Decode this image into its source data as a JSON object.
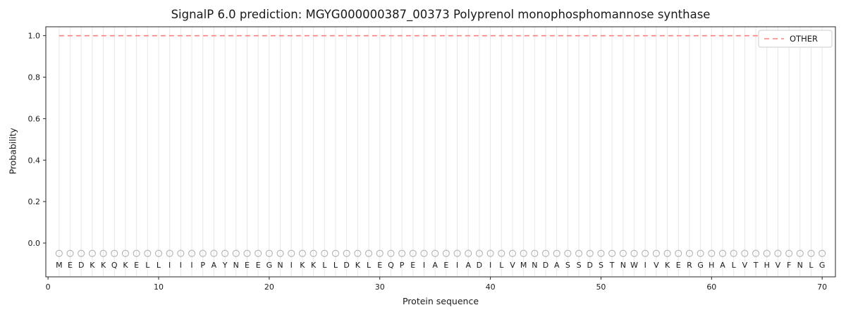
{
  "chart_data": {
    "type": "line",
    "title": "SignalP 6.0 prediction: MGYG000000387_00373 Polyprenol monophosphomannose synthase",
    "xlabel": "Protein sequence",
    "ylabel": "Probability",
    "x_ticks": [
      0,
      10,
      20,
      30,
      40,
      50,
      60,
      70
    ],
    "y_ticks": [
      0.0,
      0.2,
      0.4,
      0.6,
      0.8,
      1.0
    ],
    "xlim": [
      -0.2,
      71.2
    ],
    "ylim": [
      -0.163,
      1.043
    ],
    "grid": "vertical-per-residue",
    "legend_position": "upper right",
    "sequence": "MEDKKQKELLIIIPAYNEEGNIKKLLDKLEQPEIAEIADILVMNDASSDSTNWIVKERGHALVTHVFNLG",
    "x": [
      1,
      2,
      3,
      4,
      5,
      6,
      7,
      8,
      9,
      10,
      11,
      12,
      13,
      14,
      15,
      16,
      17,
      18,
      19,
      20,
      21,
      22,
      23,
      24,
      25,
      26,
      27,
      28,
      29,
      30,
      31,
      32,
      33,
      34,
      35,
      36,
      37,
      38,
      39,
      40,
      41,
      42,
      43,
      44,
      45,
      46,
      47,
      48,
      49,
      50,
      51,
      52,
      53,
      54,
      55,
      56,
      57,
      58,
      59,
      60,
      61,
      62,
      63,
      64,
      65,
      66,
      67,
      68,
      69,
      70
    ],
    "series": [
      {
        "name": "OTHER",
        "color": "#f4837f",
        "style": "dashed",
        "values": [
          1.0,
          1.0,
          1.0,
          1.0,
          1.0,
          1.0,
          1.0,
          1.0,
          1.0,
          1.0,
          1.0,
          1.0,
          1.0,
          1.0,
          1.0,
          1.0,
          1.0,
          1.0,
          1.0,
          1.0,
          1.0,
          1.0,
          1.0,
          1.0,
          1.0,
          1.0,
          1.0,
          1.0,
          1.0,
          1.0,
          1.0,
          1.0,
          1.0,
          1.0,
          1.0,
          1.0,
          1.0,
          1.0,
          1.0,
          1.0,
          1.0,
          1.0,
          1.0,
          1.0,
          1.0,
          1.0,
          1.0,
          1.0,
          1.0,
          1.0,
          1.0,
          1.0,
          1.0,
          1.0,
          1.0,
          1.0,
          1.0,
          1.0,
          1.0,
          1.0,
          1.0,
          1.0,
          1.0,
          1.0,
          1.0,
          1.0,
          1.0,
          1.0,
          1.0,
          1.0
        ]
      }
    ],
    "markers": {
      "shape": "circle",
      "color": "#b3b3b3",
      "y": -0.05
    },
    "letters_y": -0.105,
    "style": {
      "grid_color": "#e7e7e7",
      "spine_color": "#262626",
      "text_color": "#1a1a1a",
      "legend_border": "#cccccc",
      "legend_bg": "#ffffff"
    }
  }
}
